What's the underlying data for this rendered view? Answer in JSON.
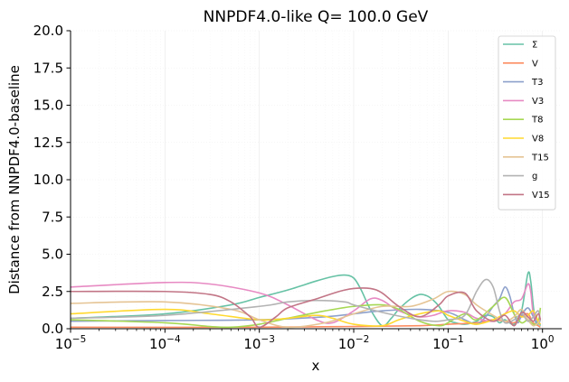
{
  "chart_data": {
    "type": "line",
    "title": "NNPDF4.0-like Q= 100.0 GeV",
    "xlabel": "x",
    "ylabel": "Distance from NNPDF4.0-baseline",
    "xscale": "log",
    "xlim": [
      1e-05,
      1.6
    ],
    "ylim": [
      0,
      20
    ],
    "grid": true,
    "legend_position": "top-right",
    "x_ticks": [
      {
        "value": 1e-05,
        "base": "10",
        "exp": "−5"
      },
      {
        "value": 0.0001,
        "base": "10",
        "exp": "−4"
      },
      {
        "value": 0.001,
        "base": "10",
        "exp": "−3"
      },
      {
        "value": 0.01,
        "base": "10",
        "exp": "−2"
      },
      {
        "value": 0.1,
        "base": "10",
        "exp": "−1"
      },
      {
        "value": 1,
        "base": "10",
        "exp": "0"
      }
    ],
    "y_ticks": [
      {
        "value": 0,
        "label": "0.0"
      },
      {
        "value": 2.5,
        "label": "2.5"
      },
      {
        "value": 5,
        "label": "5.0"
      },
      {
        "value": 7.5,
        "label": "7.5"
      },
      {
        "value": 10,
        "label": "10.0"
      },
      {
        "value": 12.5,
        "label": "12.5"
      },
      {
        "value": 15,
        "label": "15.0"
      },
      {
        "value": 17.5,
        "label": "17.5"
      },
      {
        "value": 20,
        "label": "20.0"
      }
    ],
    "series": [
      {
        "name": "Σ",
        "color": "#66c2a5",
        "x": [
          1e-05,
          0.0001,
          0.0005,
          0.001,
          0.002,
          0.004,
          0.006,
          0.008,
          0.01,
          0.012,
          0.015,
          0.02,
          0.025,
          0.03,
          0.04,
          0.05,
          0.06,
          0.07,
          0.08,
          0.1,
          0.12,
          0.15,
          0.2,
          0.25,
          0.3,
          0.35,
          0.4,
          0.5,
          0.6,
          0.7,
          0.75,
          0.8,
          0.85,
          0.9,
          0.95
        ],
        "y": [
          0.7,
          1.0,
          1.6,
          2.1,
          2.6,
          3.2,
          3.5,
          3.6,
          3.4,
          2.6,
          1.3,
          0.2,
          0.7,
          1.3,
          2.0,
          2.3,
          2.2,
          1.9,
          1.5,
          0.6,
          0.4,
          0.3,
          0.5,
          0.9,
          0.8,
          0.4,
          0.6,
          0.3,
          1.2,
          3.7,
          3.2,
          1.5,
          0.4,
          0.6,
          0.2
        ]
      },
      {
        "name": "V",
        "color": "#fc8d62",
        "x": [
          1e-05,
          0.001,
          0.01,
          0.05,
          0.1,
          0.2,
          0.3,
          0.4,
          0.5,
          0.6,
          0.7,
          0.8,
          0.9,
          0.95
        ],
        "y": [
          0.1,
          0.1,
          0.15,
          0.2,
          0.3,
          0.4,
          0.6,
          0.5,
          0.4,
          0.8,
          1.0,
          0.4,
          0.2,
          0.1
        ]
      },
      {
        "name": "T3",
        "color": "#8da0cb",
        "x": [
          1e-05,
          0.0001,
          0.001,
          0.005,
          0.01,
          0.02,
          0.05,
          0.1,
          0.15,
          0.2,
          0.25,
          0.3,
          0.35,
          0.4,
          0.45,
          0.5,
          0.55,
          0.6,
          0.7,
          0.8,
          0.9,
          0.95
        ],
        "y": [
          0.5,
          0.55,
          0.6,
          0.8,
          1.0,
          1.2,
          1.3,
          1.1,
          0.6,
          0.3,
          0.8,
          1.5,
          2.0,
          2.8,
          2.2,
          1.0,
          0.4,
          0.9,
          1.4,
          0.8,
          0.3,
          0.7
        ]
      },
      {
        "name": "V3",
        "color": "#e78ac3",
        "x": [
          1e-05,
          0.0001,
          0.0003,
          0.001,
          0.002,
          0.004,
          0.006,
          0.01,
          0.015,
          0.02,
          0.03,
          0.05,
          0.07,
          0.1,
          0.15,
          0.2,
          0.3,
          0.4,
          0.5,
          0.6,
          0.7,
          0.75,
          0.8,
          0.9,
          0.95
        ],
        "y": [
          2.8,
          3.1,
          3.0,
          2.4,
          1.6,
          0.6,
          0.4,
          1.2,
          2.0,
          1.9,
          1.2,
          0.8,
          0.9,
          1.2,
          1.1,
          0.7,
          0.5,
          1.0,
          1.8,
          2.0,
          3.0,
          2.5,
          1.0,
          0.5,
          0.3
        ]
      },
      {
        "name": "T8",
        "color": "#a6d854",
        "x": [
          1e-05,
          0.0001,
          0.0003,
          0.0005,
          0.001,
          0.002,
          0.005,
          0.01,
          0.02,
          0.03,
          0.05,
          0.08,
          0.1,
          0.15,
          0.2,
          0.3,
          0.4,
          0.5,
          0.6,
          0.7,
          0.8,
          0.9,
          0.95
        ],
        "y": [
          0.6,
          0.4,
          0.15,
          0.1,
          0.3,
          0.7,
          1.2,
          1.5,
          1.6,
          1.3,
          0.5,
          0.2,
          0.4,
          1.0,
          0.6,
          1.5,
          2.1,
          1.0,
          0.4,
          0.6,
          0.3,
          0.4,
          1.4
        ]
      },
      {
        "name": "V8",
        "color": "#ffd92f",
        "x": [
          1e-05,
          0.0001,
          0.0003,
          0.001,
          0.002,
          0.004,
          0.006,
          0.01,
          0.02,
          0.03,
          0.05,
          0.08,
          0.1,
          0.15,
          0.2,
          0.3,
          0.4,
          0.5,
          0.6,
          0.7,
          0.8,
          0.9,
          0.95
        ],
        "y": [
          1.0,
          1.3,
          1.0,
          0.6,
          0.7,
          0.9,
          0.7,
          0.3,
          0.2,
          0.6,
          1.0,
          1.2,
          0.9,
          0.5,
          0.3,
          0.6,
          1.0,
          1.2,
          0.8,
          0.9,
          1.2,
          0.5,
          0.3
        ]
      },
      {
        "name": "T15",
        "color": "#e5c494",
        "x": [
          1e-05,
          0.0001,
          0.0005,
          0.001,
          0.002,
          0.005,
          0.01,
          0.02,
          0.04,
          0.07,
          0.1,
          0.15,
          0.2,
          0.3,
          0.4,
          0.5,
          0.6,
          0.7,
          0.8,
          0.9,
          0.95
        ],
        "y": [
          1.7,
          1.8,
          1.3,
          0.6,
          0.1,
          0.4,
          1.0,
          1.5,
          1.5,
          2.0,
          2.5,
          2.3,
          1.6,
          0.9,
          0.5,
          0.8,
          1.3,
          0.6,
          0.2,
          0.4,
          0.7
        ]
      },
      {
        "name": "g",
        "color": "#b3b3b3",
        "x": [
          1e-05,
          0.0001,
          0.001,
          0.002,
          0.004,
          0.008,
          0.01,
          0.02,
          0.04,
          0.07,
          0.1,
          0.15,
          0.2,
          0.25,
          0.3,
          0.35,
          0.4,
          0.5,
          0.6,
          0.7,
          0.8,
          0.9,
          0.95
        ],
        "y": [
          0.7,
          0.9,
          1.5,
          1.8,
          1.9,
          1.8,
          1.6,
          1.1,
          0.7,
          0.5,
          0.6,
          0.9,
          2.5,
          3.3,
          2.8,
          1.2,
          0.4,
          0.6,
          1.0,
          0.5,
          0.8,
          1.2,
          0.5
        ]
      },
      {
        "name": "V15",
        "color": "#c27586",
        "x": [
          1e-05,
          0.0001,
          0.0003,
          0.0005,
          0.0008,
          0.001,
          0.0015,
          0.002,
          0.004,
          0.007,
          0.01,
          0.015,
          0.02,
          0.03,
          0.05,
          0.08,
          0.1,
          0.15,
          0.2,
          0.3,
          0.4,
          0.5,
          0.6,
          0.7,
          0.8,
          0.9,
          0.95
        ],
        "y": [
          2.5,
          2.5,
          2.3,
          1.8,
          0.8,
          0.1,
          0.8,
          1.4,
          2.0,
          2.5,
          2.7,
          2.7,
          2.4,
          1.5,
          0.8,
          1.6,
          2.2,
          2.4,
          1.2,
          0.5,
          0.9,
          0.2,
          1.1,
          0.8,
          0.5,
          1.0,
          0.6
        ]
      }
    ]
  }
}
